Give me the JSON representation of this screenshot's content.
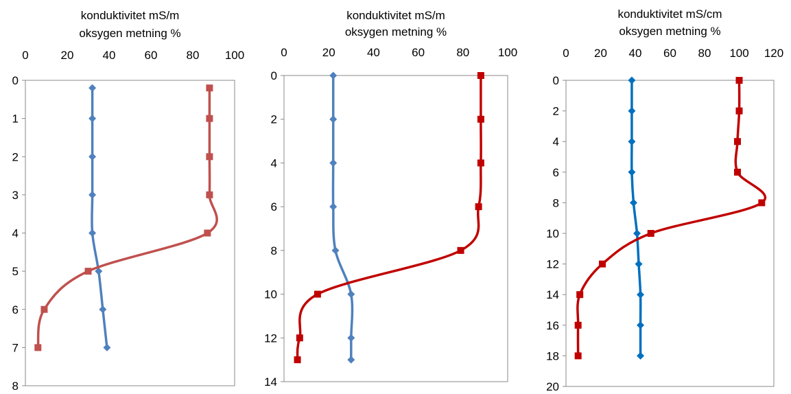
{
  "colors": {
    "blue": "#4F81BD",
    "red": "#C0504D",
    "blue_dark": "#0070C0",
    "red_dark": "#C00000",
    "axis": "#888888"
  },
  "chart_data": [
    {
      "type": "line",
      "title_lines": [
        "konduktivitet mS/m",
        "oksygen metning %"
      ],
      "xlim": [
        0,
        100
      ],
      "x_ticks": [
        "0",
        "20",
        "40",
        "60",
        "80",
        "100"
      ],
      "ylim": [
        0,
        8
      ],
      "y_ticks": [
        "0",
        "1",
        "2",
        "3",
        "4",
        "5",
        "6",
        "7",
        "8"
      ],
      "y_inverted": true,
      "series": [
        {
          "color": "#4F81BD",
          "marker": "diamond",
          "points": [
            [
              32,
              0.2
            ],
            [
              32,
              1
            ],
            [
              32,
              2
            ],
            [
              32,
              3
            ],
            [
              32,
              4
            ],
            [
              35,
              5
            ],
            [
              37,
              6
            ],
            [
              39,
              7
            ]
          ]
        },
        {
          "color": "#C0504D",
          "marker": "square",
          "points": [
            [
              88,
              0.2
            ],
            [
              88,
              1
            ],
            [
              88,
              2
            ],
            [
              88,
              3
            ],
            [
              87,
              4
            ],
            [
              30,
              5
            ],
            [
              9,
              6
            ],
            [
              6,
              7
            ]
          ]
        }
      ]
    },
    {
      "type": "line",
      "title_lines": [
        "konduktivitet mS/m",
        "oksygen metning %"
      ],
      "xlim": [
        0,
        100
      ],
      "x_ticks": [
        "0",
        "20",
        "40",
        "60",
        "80",
        "100"
      ],
      "ylim": [
        0,
        14
      ],
      "y_ticks": [
        "0",
        "2",
        "4",
        "6",
        "8",
        "10",
        "12",
        "14"
      ],
      "y_inverted": true,
      "series": [
        {
          "color": "#4F81BD",
          "marker": "diamond",
          "points": [
            [
              22,
              0
            ],
            [
              22,
              2
            ],
            [
              22,
              4
            ],
            [
              22,
              6
            ],
            [
              23,
              8
            ],
            [
              30,
              10
            ],
            [
              30,
              12
            ],
            [
              30,
              13
            ]
          ]
        },
        {
          "color": "#C00000",
          "marker": "square",
          "points": [
            [
              88,
              0
            ],
            [
              88,
              2
            ],
            [
              88,
              4
            ],
            [
              87,
              6
            ],
            [
              79,
              8
            ],
            [
              15,
              10
            ],
            [
              7,
              12
            ],
            [
              6,
              13
            ]
          ]
        }
      ]
    },
    {
      "type": "line",
      "title_lines": [
        "konduktivitet mS/cm",
        "oksygen metning %"
      ],
      "xlim": [
        0,
        120
      ],
      "x_ticks": [
        "0",
        "20",
        "40",
        "60",
        "80",
        "100",
        "120"
      ],
      "ylim": [
        0,
        20
      ],
      "y_ticks": [
        "0",
        "2",
        "4",
        "6",
        "8",
        "10",
        "12",
        "14",
        "16",
        "18",
        "20"
      ],
      "y_inverted": true,
      "series": [
        {
          "color": "#0070C0",
          "marker": "diamond",
          "points": [
            [
              38,
              0
            ],
            [
              38,
              2
            ],
            [
              38,
              4
            ],
            [
              38,
              6
            ],
            [
              39,
              8
            ],
            [
              41,
              10
            ],
            [
              42,
              12
            ],
            [
              43,
              14
            ],
            [
              43,
              16
            ],
            [
              43,
              18
            ]
          ]
        },
        {
          "color": "#C00000",
          "marker": "square",
          "points": [
            [
              100,
              0
            ],
            [
              100,
              2
            ],
            [
              99,
              4
            ],
            [
              99,
              6
            ],
            [
              113,
              8
            ],
            [
              49,
              10
            ],
            [
              21,
              12
            ],
            [
              8,
              14
            ],
            [
              7,
              16
            ],
            [
              7,
              18
            ]
          ]
        }
      ]
    }
  ]
}
